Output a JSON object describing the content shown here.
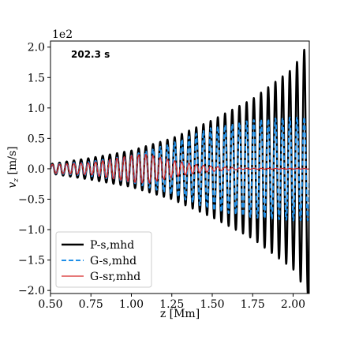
{
  "chart_data": {
    "type": "line",
    "title": "",
    "xlabel": "z [Mm]",
    "ylabel": "v_z [m/s]",
    "y_multiplier": "1e2",
    "annotation": "202.3 s",
    "xlim": [
      0.5,
      2.1
    ],
    "ylim": [
      -2.05,
      2.1
    ],
    "xticks": [
      0.5,
      0.75,
      1.0,
      1.25,
      1.5,
      1.75,
      2.0
    ],
    "xtick_labels": [
      "0.50",
      "0.75",
      "1.00",
      "1.25",
      "1.50",
      "1.75",
      "2.00"
    ],
    "yticks": [
      2.0,
      1.5,
      1.0,
      0.5,
      0.0,
      -0.5,
      -1.0,
      -1.5,
      -2.0
    ],
    "ytick_labels": [
      "2.0",
      "1.5",
      "1.0",
      "0.5",
      "0.0",
      "−0.5",
      "−1.0",
      "−1.5",
      "−2.0"
    ],
    "grid": false,
    "legend_position": "bottom-left",
    "wave": {
      "z_start": 0.5,
      "z_end": 2.1,
      "wavelength": 0.0445
    },
    "series": [
      {
        "name": "P-s,mhd",
        "color": "#000000",
        "style": "solid",
        "envelope_z": [
          0.5,
          0.75,
          1.0,
          1.25,
          1.5,
          1.75,
          2.0,
          2.1
        ],
        "envelope_amplitude": [
          0.08,
          0.18,
          0.3,
          0.5,
          0.8,
          1.15,
          1.65,
          2.1
        ]
      },
      {
        "name": "G-s,mhd",
        "color": "#1f8fe8",
        "style": "dashed",
        "envelope_z": [
          0.5,
          0.75,
          1.0,
          1.25,
          1.5,
          1.75,
          2.0,
          2.1
        ],
        "envelope_amplitude": [
          0.07,
          0.12,
          0.22,
          0.42,
          0.68,
          0.8,
          0.85,
          0.85
        ]
      },
      {
        "name": "G-sr,mhd",
        "color": "#d62728",
        "style": "solid",
        "envelope_z": [
          0.5,
          0.75,
          0.9,
          1.0,
          1.1,
          1.25,
          1.4,
          1.55,
          1.7,
          2.1
        ],
        "envelope_amplitude": [
          0.07,
          0.1,
          0.17,
          0.22,
          0.24,
          0.14,
          0.07,
          0.03,
          0.008,
          0.004
        ]
      }
    ]
  }
}
